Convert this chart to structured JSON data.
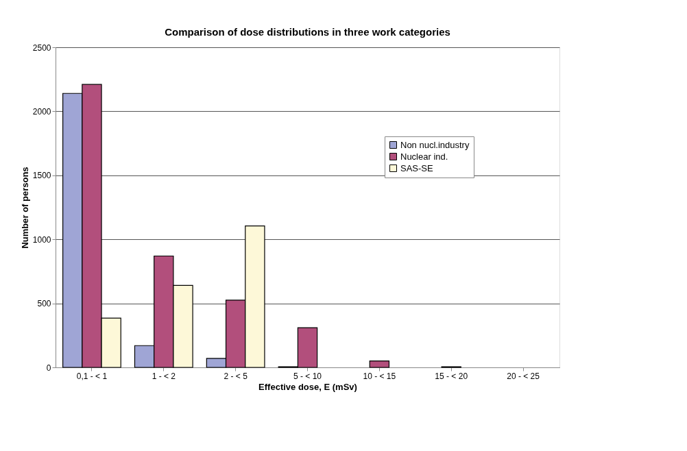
{
  "chart_data": {
    "type": "bar",
    "title": "Comparison of dose distributions in three work categories",
    "xlabel": "Effective dose, E (mSv)",
    "ylabel": "Number of persons",
    "categories": [
      "0,1 - < 1",
      "1 - < 2",
      "2 - < 5",
      "5 - < 10",
      "10 - < 15",
      "15 - < 20",
      "20 - < 25"
    ],
    "series": [
      {
        "name": "Non nucl.industry",
        "color": "#9fa5d5",
        "values": [
          2140,
          170,
          70,
          5,
          0,
          0,
          0
        ]
      },
      {
        "name": "Nuclear ind.",
        "color": "#b24f7c",
        "values": [
          2210,
          870,
          525,
          310,
          50,
          5,
          0
        ]
      },
      {
        "name": "SAS-SE",
        "color": "#fdf8d8",
        "values": [
          385,
          640,
          1105,
          0,
          0,
          0,
          0
        ]
      }
    ],
    "ylim": [
      0,
      2500
    ],
    "yticks": [
      0,
      500,
      1000,
      1500,
      2000,
      2500
    ],
    "grid": "y",
    "legend": "top right"
  }
}
